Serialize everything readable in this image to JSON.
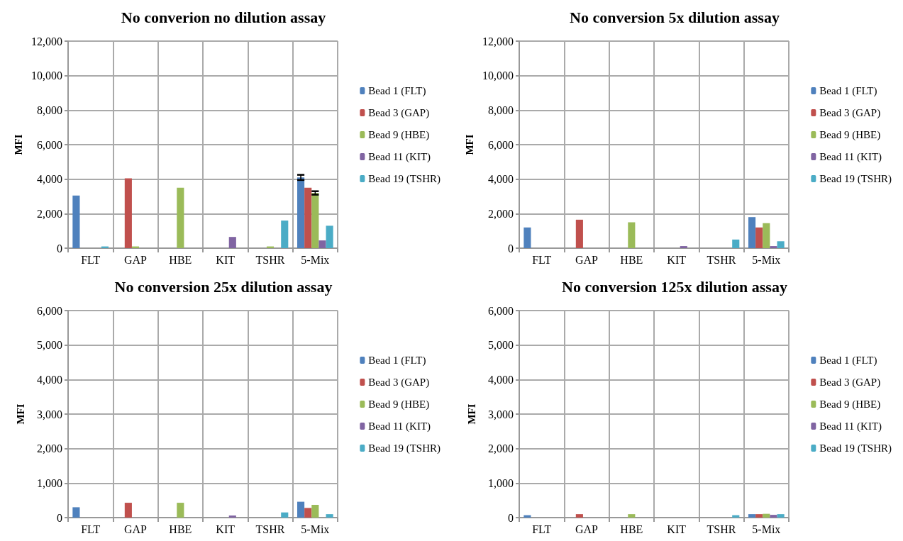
{
  "chart_data": [
    {
      "type": "bar",
      "title": "No converion no dilution assay",
      "ylabel": "MFI",
      "categories": [
        "FLT",
        "GAP",
        "HBE",
        "KIT",
        "TSHR",
        "5-Mix"
      ],
      "ylim": [
        0,
        12000
      ],
      "yticks": [
        {
          "value": 0,
          "label": "0"
        },
        {
          "value": 2000,
          "label": "2,000"
        },
        {
          "value": 4000,
          "label": "4,000"
        },
        {
          "value": 6000,
          "label": "6,000"
        },
        {
          "value": 8000,
          "label": "8,000"
        },
        {
          "value": 10000,
          "label": "10,000"
        },
        {
          "value": 12000,
          "label": "12,000"
        }
      ],
      "grid": true,
      "legend": "right",
      "series": [
        {
          "name": "Bead 1 (FLT)",
          "color": "#4f81bd",
          "values": [
            3050,
            null,
            null,
            null,
            null,
            4100
          ],
          "errors": [
            null,
            null,
            null,
            null,
            null,
            150
          ]
        },
        {
          "name": "Bead 3 (GAP)",
          "color": "#c0504d",
          "values": [
            null,
            4050,
            null,
            null,
            null,
            3500
          ]
        },
        {
          "name": "Bead 9 (HBE)",
          "color": "#9bbb59",
          "values": [
            null,
            100,
            3500,
            null,
            100,
            3200
          ],
          "errors": [
            null,
            null,
            null,
            null,
            null,
            100
          ]
        },
        {
          "name": "Bead 11 (KIT)",
          "color": "#8064a2",
          "values": [
            null,
            null,
            null,
            650,
            null,
            450
          ]
        },
        {
          "name": "Bead 19 (TSHR)",
          "color": "#4bacc6",
          "values": [
            100,
            null,
            null,
            null,
            1600,
            1300
          ]
        }
      ]
    },
    {
      "type": "bar",
      "title": "No conversion 5x dilution assay",
      "ylabel": "MFI",
      "categories": [
        "FLT",
        "GAP",
        "HBE",
        "KIT",
        "TSHR",
        "5-Mix"
      ],
      "ylim": [
        0,
        12000
      ],
      "yticks": [
        {
          "value": 0,
          "label": "0"
        },
        {
          "value": 2000,
          "label": "2,000"
        },
        {
          "value": 4000,
          "label": "4,000"
        },
        {
          "value": 6000,
          "label": "6,000"
        },
        {
          "value": 8000,
          "label": "8,000"
        },
        {
          "value": 10000,
          "label": "10,000"
        },
        {
          "value": 12000,
          "label": "12,000"
        }
      ],
      "grid": true,
      "legend": "right",
      "series": [
        {
          "name": "Bead 1 (FLT)",
          "color": "#4f81bd",
          "values": [
            1200,
            null,
            null,
            null,
            null,
            1800
          ]
        },
        {
          "name": "Bead 3 (GAP)",
          "color": "#c0504d",
          "values": [
            null,
            1650,
            null,
            null,
            null,
            1200
          ]
        },
        {
          "name": "Bead 9 (HBE)",
          "color": "#9bbb59",
          "values": [
            null,
            null,
            1500,
            null,
            null,
            1450
          ]
        },
        {
          "name": "Bead 11 (KIT)",
          "color": "#8064a2",
          "values": [
            null,
            null,
            null,
            120,
            null,
            120
          ]
        },
        {
          "name": "Bead 19 (TSHR)",
          "color": "#4bacc6",
          "values": [
            null,
            null,
            null,
            null,
            500,
            400
          ]
        }
      ]
    },
    {
      "type": "bar",
      "title": "No conversion 25x dilution assay",
      "ylabel": "MFI",
      "categories": [
        "FLT",
        "GAP",
        "HBE",
        "KIT",
        "TSHR",
        "5-Mix"
      ],
      "ylim": [
        0,
        6000
      ],
      "yticks": [
        {
          "value": 0,
          "label": "0"
        },
        {
          "value": 1000,
          "label": "1,000"
        },
        {
          "value": 2000,
          "label": "2,000"
        },
        {
          "value": 3000,
          "label": "3,000"
        },
        {
          "value": 4000,
          "label": "4,000"
        },
        {
          "value": 5000,
          "label": "5,000"
        },
        {
          "value": 6000,
          "label": "6,000"
        }
      ],
      "grid": true,
      "legend": "right",
      "series": [
        {
          "name": "Bead 1 (FLT)",
          "color": "#4f81bd",
          "values": [
            300,
            null,
            null,
            null,
            null,
            460
          ]
        },
        {
          "name": "Bead 3 (GAP)",
          "color": "#c0504d",
          "values": [
            null,
            430,
            null,
            null,
            null,
            280
          ]
        },
        {
          "name": "Bead 9 (HBE)",
          "color": "#9bbb59",
          "values": [
            null,
            null,
            430,
            null,
            null,
            370
          ]
        },
        {
          "name": "Bead 11 (KIT)",
          "color": "#8064a2",
          "values": [
            null,
            null,
            null,
            60,
            null,
            null
          ]
        },
        {
          "name": "Bead 19 (TSHR)",
          "color": "#4bacc6",
          "values": [
            null,
            null,
            null,
            null,
            150,
            100
          ]
        }
      ]
    },
    {
      "type": "bar",
      "title": "No conversion 125x dilution assay",
      "ylabel": "MFI",
      "categories": [
        "FLT",
        "GAP",
        "HBE",
        "KIT",
        "TSHR",
        "5-Mix"
      ],
      "ylim": [
        0,
        6000
      ],
      "yticks": [
        {
          "value": 0,
          "label": "0"
        },
        {
          "value": 1000,
          "label": "1,000"
        },
        {
          "value": 2000,
          "label": "2,000"
        },
        {
          "value": 3000,
          "label": "3,000"
        },
        {
          "value": 4000,
          "label": "4,000"
        },
        {
          "value": 5000,
          "label": "5,000"
        },
        {
          "value": 6000,
          "label": "6,000"
        }
      ],
      "grid": true,
      "legend": "right",
      "series": [
        {
          "name": "Bead 1 (FLT)",
          "color": "#4f81bd",
          "values": [
            70,
            null,
            null,
            null,
            null,
            100
          ]
        },
        {
          "name": "Bead 3 (GAP)",
          "color": "#c0504d",
          "values": [
            null,
            100,
            null,
            null,
            null,
            100
          ]
        },
        {
          "name": "Bead 9 (HBE)",
          "color": "#9bbb59",
          "values": [
            null,
            null,
            100,
            null,
            null,
            110
          ]
        },
        {
          "name": "Bead 11 (KIT)",
          "color": "#8064a2",
          "values": [
            null,
            null,
            null,
            null,
            null,
            80
          ]
        },
        {
          "name": "Bead 19 (TSHR)",
          "color": "#4bacc6",
          "values": [
            null,
            null,
            null,
            null,
            70,
            100
          ]
        }
      ]
    }
  ]
}
